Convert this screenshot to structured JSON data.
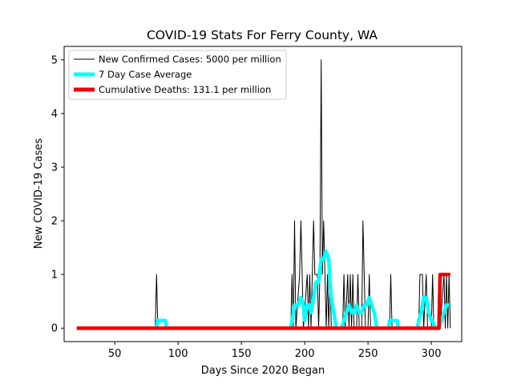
{
  "chart_data": {
    "type": "line",
    "title": "COVID-19 Stats For Ferry County, WA",
    "xlabel": "Days Since 2020 Began",
    "ylabel": "New COVID-19 Cases",
    "xlim": [
      10,
      324
    ],
    "ylim": [
      -0.25,
      5.25
    ],
    "xticks": [
      50,
      100,
      150,
      200,
      250,
      300
    ],
    "yticks": [
      0,
      1,
      2,
      3,
      4,
      5
    ],
    "grid": false,
    "legend_position": "top-left",
    "series": [
      {
        "name": "New Confirmed Cases: 5000 per million",
        "color": "#000000",
        "points": [
          [
            20,
            0
          ],
          [
            82,
            0
          ],
          [
            83,
            1
          ],
          [
            84,
            0
          ],
          [
            189,
            0
          ],
          [
            190,
            1
          ],
          [
            191,
            0
          ],
          [
            192,
            2
          ],
          [
            193,
            0
          ],
          [
            196,
            1
          ],
          [
            197,
            2
          ],
          [
            198,
            1
          ],
          [
            199,
            0
          ],
          [
            202,
            1
          ],
          [
            203,
            0
          ],
          [
            204,
            1
          ],
          [
            205,
            0
          ],
          [
            206,
            1
          ],
          [
            207,
            2
          ],
          [
            208,
            1
          ],
          [
            210,
            1
          ],
          [
            211,
            0
          ],
          [
            212,
            1
          ],
          [
            213,
            5
          ],
          [
            214,
            1
          ],
          [
            215,
            2
          ],
          [
            216,
            1
          ],
          [
            217,
            0
          ],
          [
            218,
            1
          ],
          [
            219,
            0
          ],
          [
            220,
            1
          ],
          [
            221,
            0
          ],
          [
            230,
            0
          ],
          [
            231,
            1
          ],
          [
            232,
            0
          ],
          [
            234,
            1
          ],
          [
            235,
            0
          ],
          [
            236,
            1
          ],
          [
            237,
            0
          ],
          [
            238,
            1
          ],
          [
            239,
            0
          ],
          [
            241,
            0
          ],
          [
            242,
            1
          ],
          [
            243,
            0
          ],
          [
            245,
            0
          ],
          [
            246,
            2
          ],
          [
            247,
            1
          ],
          [
            248,
            0
          ],
          [
            250,
            0
          ],
          [
            251,
            1
          ],
          [
            252,
            0
          ],
          [
            267,
            0
          ],
          [
            268,
            1
          ],
          [
            269,
            0
          ],
          [
            290,
            0
          ],
          [
            291,
            1
          ],
          [
            293,
            1
          ],
          [
            294,
            0
          ],
          [
            296,
            1
          ],
          [
            297,
            0
          ],
          [
            300,
            0
          ],
          [
            301,
            1
          ],
          [
            302,
            0
          ],
          [
            305,
            0
          ],
          [
            306,
            1
          ],
          [
            307,
            0
          ],
          [
            310,
            1
          ],
          [
            311,
            0
          ],
          [
            312,
            1
          ],
          [
            313,
            0
          ],
          [
            314,
            1
          ],
          [
            315,
            0
          ]
        ]
      },
      {
        "name": "7 Day Case Average",
        "color": "#00ffff",
        "points": [
          [
            20,
            0
          ],
          [
            83,
            0
          ],
          [
            84,
            0.14
          ],
          [
            90,
            0.14
          ],
          [
            91,
            0
          ],
          [
            189,
            0
          ],
          [
            190,
            0.14
          ],
          [
            192,
            0.43
          ],
          [
            195,
            0.43
          ],
          [
            197,
            0.57
          ],
          [
            199,
            0.43
          ],
          [
            200,
            0.14
          ],
          [
            202,
            0.43
          ],
          [
            204,
            0.43
          ],
          [
            205,
            0.29
          ],
          [
            207,
            0.57
          ],
          [
            209,
            0.86
          ],
          [
            211,
            0.86
          ],
          [
            213,
            1.29
          ],
          [
            215,
            1.29
          ],
          [
            217,
            1.43
          ],
          [
            219,
            1.29
          ],
          [
            220,
            0.86
          ],
          [
            221,
            0.57
          ],
          [
            223,
            0.29
          ],
          [
            224,
            0.14
          ],
          [
            225,
            0
          ],
          [
            229,
            0
          ],
          [
            231,
            0.14
          ],
          [
            233,
            0.29
          ],
          [
            235,
            0.43
          ],
          [
            237,
            0.29
          ],
          [
            239,
            0.29
          ],
          [
            241,
            0.43
          ],
          [
            243,
            0.29
          ],
          [
            245,
            0.29
          ],
          [
            247,
            0.43
          ],
          [
            249,
            0.43
          ],
          [
            251,
            0.57
          ],
          [
            253,
            0.43
          ],
          [
            255,
            0.29
          ],
          [
            256,
            0.14
          ],
          [
            257,
            0
          ],
          [
            266,
            0
          ],
          [
            267,
            0.14
          ],
          [
            273,
            0.14
          ],
          [
            274,
            0
          ],
          [
            289,
            0
          ],
          [
            290,
            0.14
          ],
          [
            292,
            0.29
          ],
          [
            294,
            0.57
          ],
          [
            296,
            0.57
          ],
          [
            297,
            0.43
          ],
          [
            298,
            0.29
          ],
          [
            300,
            0.14
          ],
          [
            301,
            0.14
          ],
          [
            303,
            0
          ],
          [
            306,
            0
          ],
          [
            308,
            0.14
          ],
          [
            310,
            0.29
          ],
          [
            312,
            0.43
          ],
          [
            314,
            0.43
          ]
        ]
      },
      {
        "name": "Cumulative Deaths: 131.1 per million",
        "color": "#ee0000",
        "points": [
          [
            20,
            0
          ],
          [
            306,
            0
          ],
          [
            307,
            1
          ],
          [
            315,
            1
          ]
        ]
      }
    ]
  }
}
